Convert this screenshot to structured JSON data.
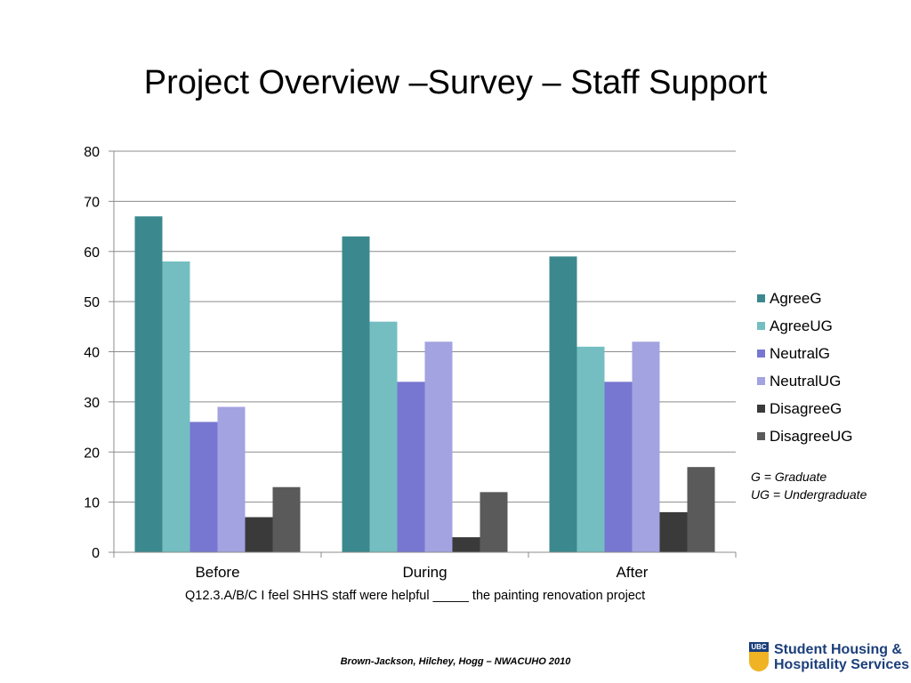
{
  "slide": {
    "title": "Project Overview –Survey – Staff Support",
    "note_lines": [
      "G = Graduate",
      "UG = Undergraduate"
    ],
    "question": "Q12.3.A/B/C I feel SHHS staff were helpful _____ the painting renovation project",
    "footer": "Brown-Jackson, Hilchey, Hogg – NWACUHO 2010",
    "logo": {
      "seal_text": "UBC",
      "line1": "Student Housing &",
      "line2": "Hospitality Services"
    }
  },
  "chart_data": {
    "type": "bar",
    "title": "",
    "xlabel": "",
    "ylabel": "",
    "categories": [
      "Before",
      "During",
      "After"
    ],
    "ylim": [
      0,
      80
    ],
    "yticks": [
      0,
      10,
      20,
      30,
      40,
      50,
      60,
      70,
      80
    ],
    "grid": true,
    "legend_position": "right",
    "series": [
      {
        "name": "AgreeG",
        "color": "#3b898e",
        "values": [
          67,
          63,
          59
        ]
      },
      {
        "name": "AgreeUG",
        "color": "#74bec2",
        "values": [
          58,
          46,
          41
        ]
      },
      {
        "name": "NeutralG",
        "color": "#7777d1",
        "values": [
          26,
          34,
          34
        ]
      },
      {
        "name": "NeutralUG",
        "color": "#a3a3e1",
        "values": [
          29,
          42,
          42
        ]
      },
      {
        "name": "DisagreeG",
        "color": "#3a3a3a",
        "values": [
          7,
          3,
          8
        ]
      },
      {
        "name": "DisagreeUG",
        "color": "#5a5a5a",
        "values": [
          13,
          12,
          17
        ]
      }
    ]
  }
}
